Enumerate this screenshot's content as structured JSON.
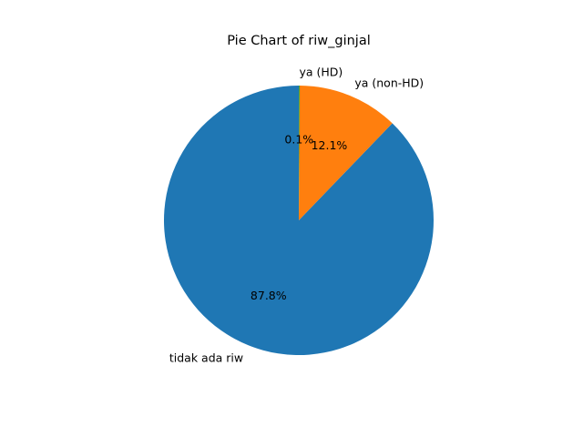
{
  "chart_data": {
    "type": "pie",
    "title": "Pie Chart of riw_ginjal",
    "categories": [
      "tidak ada riw",
      "ya (non-HD)",
      "ya (HD)"
    ],
    "values": [
      87.8,
      12.1,
      0.1
    ],
    "value_labels": [
      "87.8%",
      "12.1%",
      "0.1%"
    ],
    "colors": [
      "#1f77b4",
      "#ff7f0e",
      "#2ca02c"
    ],
    "start_angle_deg": 90,
    "direction": "counterclockwise",
    "legend": "none"
  }
}
